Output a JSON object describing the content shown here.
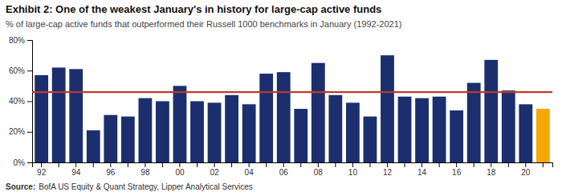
{
  "chart_data": {
    "type": "bar",
    "title": "Exhibit 2: One of the weakest January's  in history for large-cap active funds",
    "subtitle": "% of large-cap active funds that outperformed their Russell 1000 benchmarks in January (1992-2021)",
    "annotations": [
      "Source:",
      "BofA US Equity & Quant Strategy, Lipper Analytical Services"
    ],
    "categories": [
      "92",
      null,
      "94",
      null,
      "96",
      null,
      "98",
      null,
      "00",
      null,
      "02",
      null,
      "04",
      null,
      "06",
      null,
      "08",
      null,
      "10",
      null,
      "12",
      null,
      "14",
      null,
      "16",
      null,
      "18",
      null,
      "20",
      null
    ],
    "values": [
      57,
      62,
      61,
      21,
      31,
      30,
      42,
      40,
      50,
      40,
      39,
      44,
      38,
      58,
      59,
      35,
      65,
      44,
      39,
      30,
      70,
      43,
      42,
      43,
      34,
      52,
      67,
      47,
      38,
      35
    ],
    "colors": [
      "#1b2f6e",
      "#1b2f6e",
      "#1b2f6e",
      "#1b2f6e",
      "#1b2f6e",
      "#1b2f6e",
      "#1b2f6e",
      "#1b2f6e",
      "#1b2f6e",
      "#1b2f6e",
      "#1b2f6e",
      "#1b2f6e",
      "#1b2f6e",
      "#1b2f6e",
      "#1b2f6e",
      "#1b2f6e",
      "#1b2f6e",
      "#1b2f6e",
      "#1b2f6e",
      "#1b2f6e",
      "#1b2f6e",
      "#1b2f6e",
      "#1b2f6e",
      "#1b2f6e",
      "#1b2f6e",
      "#1b2f6e",
      "#1b2f6e",
      "#1b2f6e",
      "#1b2f6e",
      "#f5a800"
    ],
    "reference_line": {
      "value": 46,
      "color": "#c0392b"
    },
    "ylim": [
      0,
      80
    ],
    "yticks": [
      {
        "value": 0,
        "label": "0%"
      },
      {
        "value": 20,
        "label": "20%"
      },
      {
        "value": 40,
        "label": "40%"
      },
      {
        "value": 60,
        "label": "60%"
      },
      {
        "value": 80,
        "label": "80%"
      }
    ],
    "grid": false
  }
}
